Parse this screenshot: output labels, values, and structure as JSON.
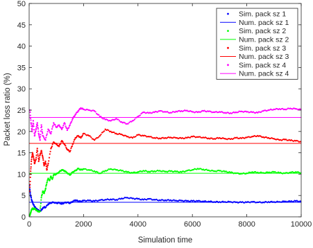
{
  "chart_data": {
    "type": "scatter",
    "title": "",
    "xlabel": "Simulation time",
    "ylabel": "Packet loss ratio (%)",
    "xlim": [
      0,
      10000
    ],
    "ylim": [
      0,
      50
    ],
    "xticks": [
      0,
      2000,
      4000,
      6000,
      8000,
      10000
    ],
    "yticks": [
      0,
      5,
      10,
      15,
      20,
      25,
      30,
      35,
      40,
      45,
      50
    ],
    "grid": false,
    "legend_position": "top-right",
    "series": [
      {
        "name": "Sim. pack sz 1",
        "kind": "scatter",
        "color": "#0000ff",
        "points": [
          [
            10,
            7.5
          ],
          [
            30,
            6.0
          ],
          [
            60,
            4.8
          ],
          [
            100,
            3.8
          ],
          [
            150,
            3.0
          ],
          [
            200,
            2.4
          ],
          [
            250,
            2.0
          ],
          [
            300,
            1.7
          ],
          [
            350,
            1.5
          ],
          [
            400,
            1.3
          ],
          [
            450,
            1.6
          ],
          [
            500,
            2.0
          ],
          [
            550,
            2.3
          ],
          [
            600,
            2.2
          ],
          [
            700,
            3.0
          ],
          [
            800,
            3.3
          ],
          [
            900,
            3.4
          ],
          [
            1000,
            3.2
          ],
          [
            1100,
            3.3
          ],
          [
            1200,
            3.0
          ],
          [
            1300,
            3.3
          ],
          [
            1400,
            3.4
          ],
          [
            1500,
            3.2
          ],
          [
            1600,
            3.6
          ],
          [
            1700,
            3.9
          ],
          [
            1800,
            3.7
          ],
          [
            1900,
            3.6
          ],
          [
            2000,
            3.8
          ],
          [
            2200,
            3.8
          ],
          [
            2400,
            3.7
          ],
          [
            2600,
            3.9
          ],
          [
            2800,
            4.0
          ],
          [
            3000,
            4.1
          ],
          [
            3200,
            4.0
          ],
          [
            3400,
            4.3
          ],
          [
            3600,
            4.5
          ],
          [
            3800,
            4.3
          ],
          [
            4000,
            4.2
          ],
          [
            4200,
            4.0
          ],
          [
            4400,
            4.2
          ],
          [
            4600,
            4.0
          ],
          [
            4800,
            3.9
          ],
          [
            5000,
            3.9
          ],
          [
            5200,
            3.9
          ],
          [
            5400,
            3.8
          ],
          [
            5600,
            3.8
          ],
          [
            5800,
            3.7
          ],
          [
            6000,
            3.7
          ],
          [
            6200,
            3.7
          ],
          [
            6400,
            3.6
          ],
          [
            6600,
            3.6
          ],
          [
            6800,
            3.5
          ],
          [
            7000,
            3.5
          ],
          [
            7200,
            3.5
          ],
          [
            7400,
            3.5
          ],
          [
            7600,
            3.4
          ],
          [
            7800,
            3.4
          ],
          [
            8000,
            3.4
          ],
          [
            8200,
            3.5
          ],
          [
            8400,
            3.4
          ],
          [
            8600,
            3.4
          ],
          [
            8800,
            3.5
          ],
          [
            9000,
            3.5
          ],
          [
            9200,
            3.5
          ],
          [
            9400,
            3.6
          ],
          [
            9600,
            3.6
          ],
          [
            9800,
            3.7
          ],
          [
            10000,
            3.6
          ]
        ]
      },
      {
        "name": "Num. pack sz 1",
        "kind": "line",
        "color": "#0000ff",
        "points": [
          [
            0,
            3.4
          ],
          [
            10000,
            3.4
          ]
        ]
      },
      {
        "name": "Sim. pack sz 2",
        "kind": "scatter",
        "color": "#00ff00",
        "points": [
          [
            20,
            0.3
          ],
          [
            50,
            0.8
          ],
          [
            80,
            1.5
          ],
          [
            120,
            2.0
          ],
          [
            160,
            1.8
          ],
          [
            200,
            2.0
          ],
          [
            250,
            1.6
          ],
          [
            300,
            1.4
          ],
          [
            350,
            1.2
          ],
          [
            400,
            1.3
          ],
          [
            450,
            4.5
          ],
          [
            500,
            6.0
          ],
          [
            550,
            5.5
          ],
          [
            600,
            6.5
          ],
          [
            650,
            8.0
          ],
          [
            700,
            9.0
          ],
          [
            750,
            8.5
          ],
          [
            800,
            9.5
          ],
          [
            850,
            8.8
          ],
          [
            900,
            9.8
          ],
          [
            1000,
            10.0
          ],
          [
            1100,
            10.5
          ],
          [
            1200,
            11.0
          ],
          [
            1300,
            10.8
          ],
          [
            1400,
            10.3
          ],
          [
            1500,
            9.8
          ],
          [
            1600,
            10.5
          ],
          [
            1700,
            10.8
          ],
          [
            1800,
            11.3
          ],
          [
            1900,
            11.0
          ],
          [
            2000,
            11.2
          ],
          [
            2200,
            11.0
          ],
          [
            2400,
            10.7
          ],
          [
            2600,
            10.2
          ],
          [
            2800,
            10.8
          ],
          [
            3000,
            11.2
          ],
          [
            3200,
            11.0
          ],
          [
            3400,
            10.8
          ],
          [
            3600,
            10.5
          ],
          [
            3800,
            10.3
          ],
          [
            4000,
            10.5
          ],
          [
            4200,
            10.8
          ],
          [
            4400,
            10.6
          ],
          [
            4600,
            10.7
          ],
          [
            4800,
            10.8
          ],
          [
            5000,
            10.6
          ],
          [
            5200,
            10.7
          ],
          [
            5400,
            10.6
          ],
          [
            5600,
            10.5
          ],
          [
            5800,
            10.8
          ],
          [
            6000,
            11.0
          ],
          [
            6200,
            11.3
          ],
          [
            6400,
            11.1
          ],
          [
            6600,
            10.9
          ],
          [
            6800,
            10.7
          ],
          [
            7000,
            10.8
          ],
          [
            7200,
            10.6
          ],
          [
            7400,
            10.4
          ],
          [
            7600,
            10.2
          ],
          [
            7800,
            10.1
          ],
          [
            8000,
            10.2
          ],
          [
            8200,
            10.5
          ],
          [
            8400,
            10.4
          ],
          [
            8600,
            10.3
          ],
          [
            8800,
            10.4
          ],
          [
            9000,
            10.5
          ],
          [
            9200,
            10.3
          ],
          [
            9400,
            10.2
          ],
          [
            9600,
            10.4
          ],
          [
            9800,
            10.5
          ],
          [
            10000,
            10.3
          ]
        ]
      },
      {
        "name": "Num. pack sz 2",
        "kind": "line",
        "color": "#00ff00",
        "points": [
          [
            0,
            10.2
          ],
          [
            10000,
            10.2
          ]
        ]
      },
      {
        "name": "Sim. pack sz 3",
        "kind": "scatter",
        "color": "#ff0000",
        "points": [
          [
            20,
            6.0
          ],
          [
            50,
            10.0
          ],
          [
            80,
            13.0
          ],
          [
            120,
            15.0
          ],
          [
            160,
            14.0
          ],
          [
            200,
            12.5
          ],
          [
            250,
            13.5
          ],
          [
            300,
            16.0
          ],
          [
            350,
            13.0
          ],
          [
            400,
            14.5
          ],
          [
            450,
            15.5
          ],
          [
            500,
            14.0
          ],
          [
            550,
            12.0
          ],
          [
            600,
            13.0
          ],
          [
            650,
            11.0
          ],
          [
            700,
            12.5
          ],
          [
            800,
            16.0
          ],
          [
            900,
            17.5
          ],
          [
            1000,
            17.0
          ],
          [
            1100,
            16.5
          ],
          [
            1200,
            17.8
          ],
          [
            1300,
            17.0
          ],
          [
            1400,
            15.8
          ],
          [
            1500,
            15.3
          ],
          [
            1600,
            17.0
          ],
          [
            1700,
            18.5
          ],
          [
            1800,
            19.0
          ],
          [
            1900,
            18.5
          ],
          [
            2000,
            19.5
          ],
          [
            2200,
            19.0
          ],
          [
            2400,
            18.0
          ],
          [
            2600,
            19.0
          ],
          [
            2800,
            20.5
          ],
          [
            3000,
            20.0
          ],
          [
            3200,
            19.5
          ],
          [
            3400,
            19.3
          ],
          [
            3600,
            18.8
          ],
          [
            3800,
            18.5
          ],
          [
            4000,
            19.2
          ],
          [
            4200,
            19.0
          ],
          [
            4400,
            18.8
          ],
          [
            4600,
            18.5
          ],
          [
            4800,
            18.4
          ],
          [
            5000,
            18.5
          ],
          [
            5200,
            18.6
          ],
          [
            5400,
            18.5
          ],
          [
            5600,
            18.4
          ],
          [
            5800,
            18.5
          ],
          [
            6000,
            18.8
          ],
          [
            6200,
            18.7
          ],
          [
            6400,
            18.6
          ],
          [
            6600,
            18.4
          ],
          [
            6800,
            18.3
          ],
          [
            7000,
            18.5
          ],
          [
            7200,
            18.3
          ],
          [
            7400,
            18.2
          ],
          [
            7600,
            18.5
          ],
          [
            7800,
            18.4
          ],
          [
            8000,
            18.6
          ],
          [
            8200,
            18.8
          ],
          [
            8400,
            19.0
          ],
          [
            8600,
            18.7
          ],
          [
            8800,
            18.5
          ],
          [
            9000,
            18.3
          ],
          [
            9200,
            18.0
          ],
          [
            9400,
            18.1
          ],
          [
            9600,
            17.9
          ],
          [
            9800,
            17.8
          ],
          [
            10000,
            17.6
          ]
        ]
      },
      {
        "name": "Num. pack sz 3",
        "kind": "line",
        "color": "#ff0000",
        "points": [
          [
            0,
            17.2
          ],
          [
            10000,
            17.2
          ]
        ]
      },
      {
        "name": "Sim. pack sz 4",
        "kind": "scatter",
        "color": "#ff00ff",
        "points": [
          [
            30,
            25.0
          ],
          [
            70,
            22.0
          ],
          [
            110,
            20.0
          ],
          [
            150,
            22.5
          ],
          [
            200,
            19.0
          ],
          [
            250,
            20.5
          ],
          [
            300,
            22.0
          ],
          [
            350,
            19.5
          ],
          [
            400,
            18.0
          ],
          [
            450,
            21.5
          ],
          [
            500,
            19.0
          ],
          [
            600,
            18.0
          ],
          [
            700,
            20.5
          ],
          [
            800,
            19.5
          ],
          [
            900,
            22.0
          ],
          [
            1000,
            21.0
          ],
          [
            1100,
            21.5
          ],
          [
            1200,
            20.5
          ],
          [
            1300,
            22.0
          ],
          [
            1400,
            20.3
          ],
          [
            1500,
            21.5
          ],
          [
            1600,
            23.0
          ],
          [
            1700,
            24.0
          ],
          [
            1800,
            24.8
          ],
          [
            1900,
            25.5
          ],
          [
            2000,
            25.2
          ],
          [
            2200,
            25.0
          ],
          [
            2400,
            24.8
          ],
          [
            2600,
            23.5
          ],
          [
            2800,
            22.8
          ],
          [
            3000,
            22.5
          ],
          [
            3200,
            23.0
          ],
          [
            3400,
            22.2
          ],
          [
            3600,
            21.8
          ],
          [
            3800,
            22.5
          ],
          [
            4000,
            23.5
          ],
          [
            4200,
            24.5
          ],
          [
            4400,
            24.3
          ],
          [
            4600,
            24.5
          ],
          [
            4800,
            24.8
          ],
          [
            5000,
            24.6
          ],
          [
            5200,
            24.4
          ],
          [
            5400,
            24.7
          ],
          [
            5600,
            24.8
          ],
          [
            5800,
            24.9
          ],
          [
            6000,
            24.6
          ],
          [
            6200,
            24.5
          ],
          [
            6400,
            24.8
          ],
          [
            6600,
            24.7
          ],
          [
            6800,
            24.5
          ],
          [
            7000,
            24.6
          ],
          [
            7200,
            24.4
          ],
          [
            7400,
            24.3
          ],
          [
            7600,
            24.5
          ],
          [
            7800,
            24.7
          ],
          [
            8000,
            24.6
          ],
          [
            8200,
            24.5
          ],
          [
            8400,
            24.4
          ],
          [
            8600,
            24.8
          ],
          [
            8800,
            25.0
          ],
          [
            9000,
            25.2
          ],
          [
            9200,
            25.3
          ],
          [
            9400,
            25.2
          ],
          [
            9600,
            25.4
          ],
          [
            9800,
            25.3
          ],
          [
            10000,
            25.1
          ]
        ]
      },
      {
        "name": "Num. pack sz 4",
        "kind": "line",
        "color": "#ff00ff",
        "points": [
          [
            0,
            23.3
          ],
          [
            10000,
            23.3
          ]
        ]
      }
    ]
  }
}
